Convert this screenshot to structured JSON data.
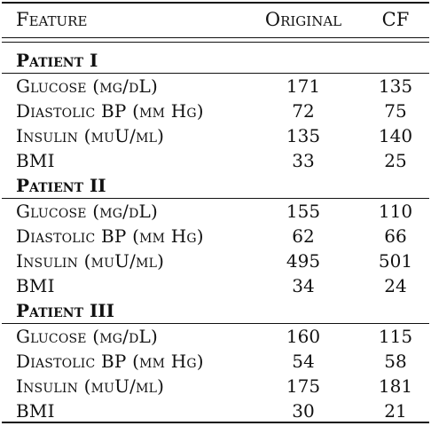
{
  "columns": {
    "feature": "Feature",
    "original": "Original",
    "cf": "CF"
  },
  "groups": [
    {
      "title": "Patient I",
      "rows": [
        {
          "feature": "Glucose (mg/dL)",
          "original": "171",
          "cf": "135"
        },
        {
          "feature": "Diastolic BP (mm Hg)",
          "original": "72",
          "cf": "75"
        },
        {
          "feature": "Insulin (muU/ml)",
          "original": "135",
          "cf": "140"
        },
        {
          "feature": "BMI",
          "original": "33",
          "cf": "25"
        }
      ]
    },
    {
      "title": "Patient II",
      "rows": [
        {
          "feature": "Glucose (mg/dL)",
          "original": "155",
          "cf": "110"
        },
        {
          "feature": "Diastolic BP (mm Hg)",
          "original": "62",
          "cf": "66"
        },
        {
          "feature": "Insulin (muU/ml)",
          "original": "495",
          "cf": "501"
        },
        {
          "feature": "BMI",
          "original": "34",
          "cf": "24"
        }
      ]
    },
    {
      "title": "Patient III",
      "rows": [
        {
          "feature": "Glucose (mg/dL)",
          "original": "160",
          "cf": "115"
        },
        {
          "feature": "Diastolic BP (mm Hg)",
          "original": "54",
          "cf": "58"
        },
        {
          "feature": "Insulin (muU/ml)",
          "original": "175",
          "cf": "181"
        },
        {
          "feature": "BMI",
          "original": "30",
          "cf": "21"
        }
      ]
    }
  ]
}
